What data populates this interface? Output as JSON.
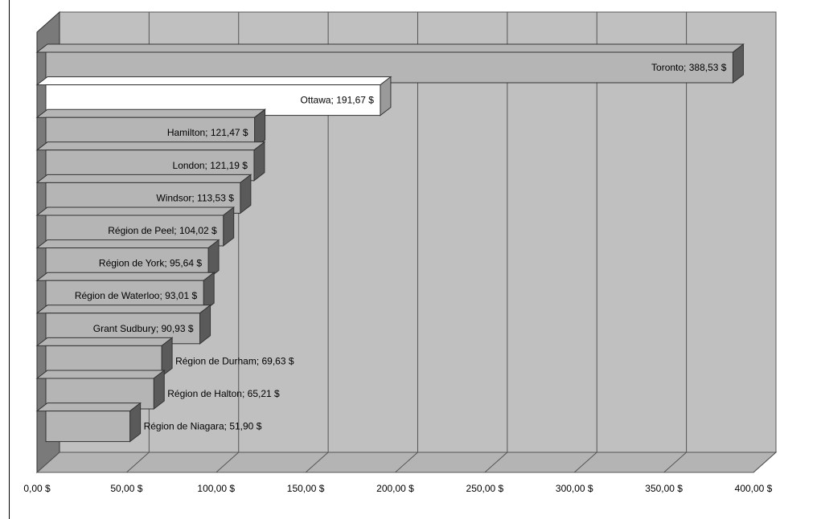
{
  "chart_data": {
    "type": "bar",
    "orientation": "horizontal",
    "title": "",
    "xlabel": "",
    "ylabel": "",
    "categories": [
      "Toronto",
      "Ottawa",
      "Hamilton",
      "London",
      "Windsor",
      "Région de Peel",
      "Région de York",
      "Région de Waterloo",
      "Grant Sudbury",
      "Région de Durham",
      "Région de Halton",
      "Région de Niagara"
    ],
    "values": [
      388.53,
      191.67,
      121.47,
      121.19,
      113.53,
      104.02,
      95.64,
      93.01,
      90.93,
      69.63,
      65.21,
      51.9
    ],
    "data_labels": [
      "Toronto; 388,53 $",
      "Ottawa; 191,67 $",
      "Hamilton; 121,47 $",
      "London; 121,19 $",
      "Windsor; 113,53 $",
      "Région de Peel; 104,02 $",
      "Région de York; 95,64 $",
      "Région de Waterloo; 93,01 $",
      "Grant Sudbury; 90,93 $",
      "Région de Durham; 69,63 $",
      "Région de Halton; 65,21 $",
      "Région de Niagara; 51,90 $"
    ],
    "xlim": [
      0,
      400
    ],
    "xticks": [
      0,
      50,
      100,
      150,
      200,
      250,
      300,
      350,
      400
    ],
    "xtick_labels": [
      "0,00 $",
      "50,00 $",
      "100,00 $",
      "150,00 $",
      "200,00 $",
      "250,00 $",
      "300,00 $",
      "350,00 $",
      "400,00 $"
    ],
    "grid": true,
    "style": "3d",
    "highlighted_category": "Ottawa",
    "colors": {
      "background_wall": "#c0c0c0",
      "floor": "#b4b4b4",
      "side_wall": "#7a7a7a",
      "bar_face": "#b5b5b5",
      "bar_side": "#5a5a5a",
      "highlight_face": "#ffffff",
      "highlight_side": "#9a9a9a",
      "grid": "#555555",
      "outline": "#333333"
    }
  }
}
